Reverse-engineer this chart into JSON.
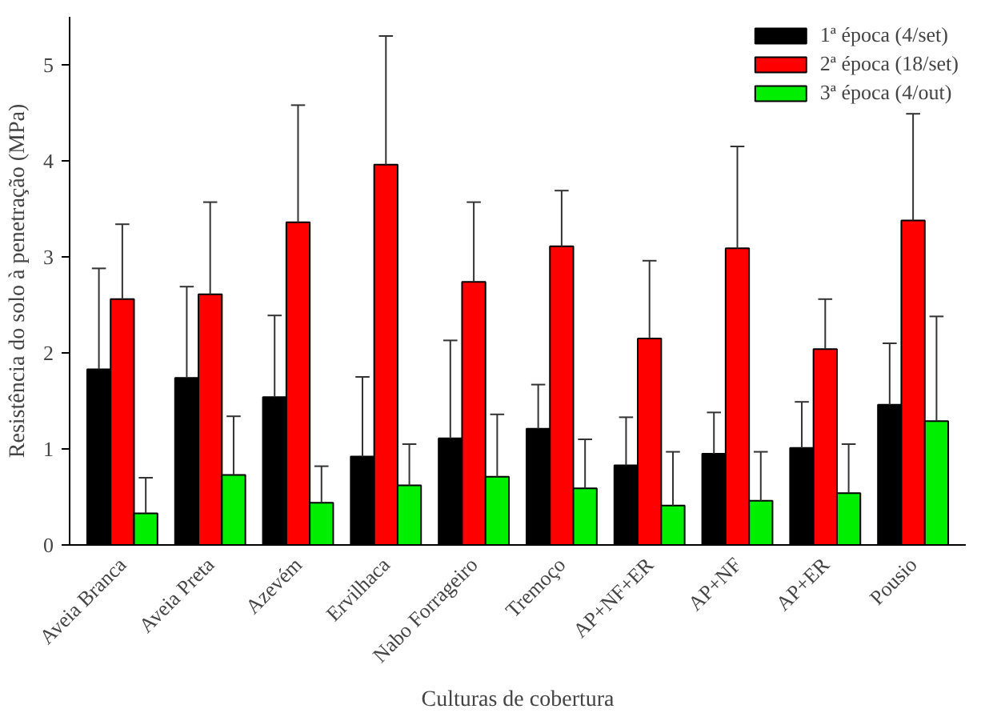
{
  "chart_data": {
    "type": "bar",
    "xlabel": "Culturas de cobertura",
    "ylabel": "Resistência do solo à penetração (MPa)",
    "categories": [
      "Aveia Branca",
      "Aveia Preta",
      "Azevém",
      "Ervilhaca",
      "Nabo Forrageiro",
      "Tremoço",
      "AP+NF+ER",
      "AP+NF",
      "AP+ER",
      "Pousio"
    ],
    "series": [
      {
        "name": "1ª época (4/set)",
        "color": "#000000",
        "values": [
          1.83,
          1.74,
          1.54,
          0.92,
          1.11,
          1.21,
          0.83,
          0.95,
          1.01,
          1.46
        ],
        "errors": [
          [
            1.83,
            2.88
          ],
          [
            1.74,
            2.69
          ],
          [
            1.54,
            2.39
          ],
          [
            0.92,
            1.75
          ],
          [
            1.11,
            2.13
          ],
          [
            1.21,
            1.67
          ],
          [
            0.83,
            1.33
          ],
          [
            0.95,
            1.38
          ],
          [
            1.01,
            1.49
          ],
          [
            1.46,
            2.1
          ]
        ]
      },
      {
        "name": "2ª época (18/set)",
        "color": "#ff0000",
        "values": [
          2.56,
          2.61,
          3.36,
          3.96,
          2.74,
          3.11,
          2.15,
          3.09,
          2.04,
          3.38
        ],
        "errors": [
          [
            2.56,
            3.34
          ],
          [
            2.61,
            3.57
          ],
          [
            3.36,
            4.58
          ],
          [
            3.96,
            5.3
          ],
          [
            2.74,
            3.57
          ],
          [
            3.11,
            3.69
          ],
          [
            2.15,
            2.96
          ],
          [
            3.09,
            4.15
          ],
          [
            2.04,
            2.56
          ],
          [
            3.38,
            4.49
          ]
        ]
      },
      {
        "name": "3ª época (4/out)",
        "color": "#00ee00",
        "values": [
          0.33,
          0.73,
          0.44,
          0.62,
          0.71,
          0.59,
          0.41,
          0.46,
          0.54,
          1.29
        ],
        "errors": [
          [
            0.33,
            0.7
          ],
          [
            0.73,
            1.34
          ],
          [
            0.44,
            0.82
          ],
          [
            0.62,
            1.05
          ],
          [
            0.71,
            1.36
          ],
          [
            0.59,
            1.1
          ],
          [
            0.41,
            0.97
          ],
          [
            0.46,
            0.97
          ],
          [
            0.54,
            1.05
          ],
          [
            1.29,
            2.38
          ]
        ]
      }
    ],
    "ylim": [
      0,
      5.5
    ],
    "yticks": [
      0,
      1,
      2,
      3,
      4,
      5
    ],
    "grid": false,
    "legend": "top right"
  }
}
